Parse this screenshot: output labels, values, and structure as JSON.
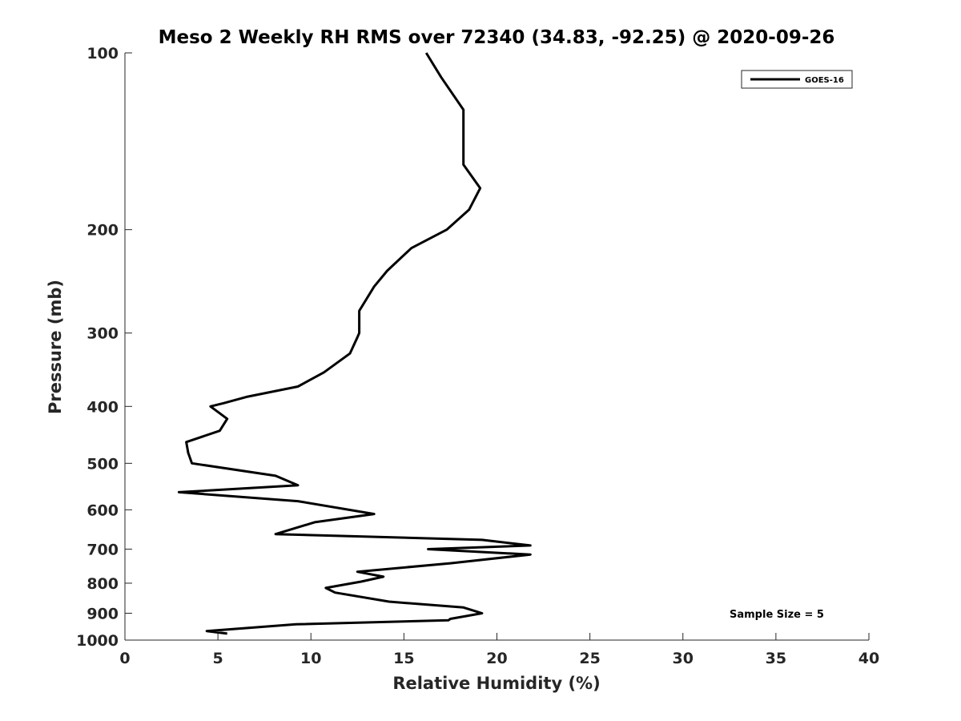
{
  "chart_data": {
    "type": "line",
    "title": "Meso 2 Weekly RH RMS over 72340 (34.83, -92.25) @ 2020-09-26",
    "xlabel": "Relative Humidity (%)",
    "ylabel": "Pressure (mb)",
    "xlim": [
      0,
      40
    ],
    "ylim": [
      100,
      1000
    ],
    "yscale": "log",
    "y_reversed": true,
    "xticks": [
      0,
      5,
      10,
      15,
      20,
      25,
      30,
      35,
      40
    ],
    "yticks": [
      100,
      200,
      300,
      400,
      500,
      600,
      700,
      800,
      900,
      1000
    ],
    "grid": false,
    "legend_position": "top-right",
    "annotation": "Sample Size = 5",
    "series": [
      {
        "name": "GOES-16",
        "color": "#000000",
        "x": [
          16.2,
          17.0,
          18.2,
          18.2,
          18.2,
          19.1,
          18.5,
          17.3,
          15.4,
          14.1,
          13.4,
          12.6,
          12.6,
          12.5,
          12.1,
          10.7,
          9.3,
          6.6,
          5.3,
          4.6,
          5.5,
          5.1,
          3.3,
          3.4,
          3.6,
          8.1,
          9.3,
          2.9,
          9.3,
          13.4,
          10.2,
          8.1,
          19.2,
          21.8,
          16.3,
          21.8,
          17.5,
          12.5,
          13.9,
          12.7,
          10.8,
          11.3,
          14.2,
          18.2,
          19.2,
          17.5,
          17.4,
          9.2,
          4.4,
          5.5
        ],
        "y": [
          100,
          110,
          125,
          140,
          155,
          170,
          185,
          200,
          215,
          235,
          250,
          275,
          300,
          305,
          325,
          350,
          370,
          385,
          395,
          400,
          420,
          440,
          460,
          480,
          500,
          525,
          545,
          560,
          580,
          610,
          630,
          660,
          675,
          690,
          700,
          715,
          740,
          765,
          780,
          795,
          815,
          830,
          860,
          880,
          900,
          920,
          925,
          940,
          965,
          975
        ]
      }
    ]
  }
}
